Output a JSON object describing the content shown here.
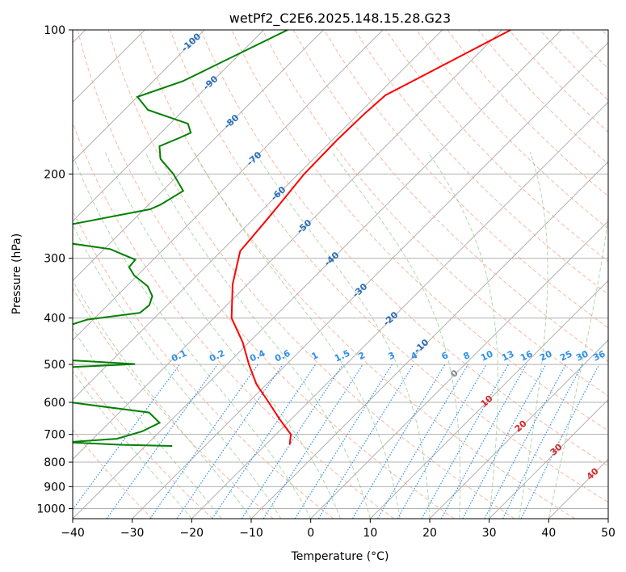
{
  "chart_data": {
    "type": "line",
    "subtype": "skew-t log-p",
    "title": "wetPf2_C2E6.2025.148.15.28.G23",
    "xlabel": "Temperature (°C)",
    "ylabel": "Pressure (hPa)",
    "xlim": [
      -40,
      50
    ],
    "ylim": [
      1050,
      100
    ],
    "yscale": "log",
    "grid": true,
    "x_ticks": [
      "−40",
      "−30",
      "−20",
      "−10",
      "0",
      "10",
      "20",
      "30",
      "40",
      "50"
    ],
    "x_tick_values": [
      -40,
      -30,
      -20,
      -10,
      0,
      10,
      20,
      30,
      40,
      50
    ],
    "y_ticks": [
      "100",
      "200",
      "300",
      "400",
      "500",
      "600",
      "700",
      "800",
      "900",
      "1000"
    ],
    "y_tick_values": [
      100,
      200,
      300,
      400,
      500,
      600,
      700,
      800,
      900,
      1000
    ],
    "series": [
      {
        "role": "temperature",
        "color": "#ff0000",
        "points": [
          [
            -48.5,
            100
          ],
          [
            -58.6,
            137
          ],
          [
            -59.0,
            150
          ],
          [
            -59.2,
            170
          ],
          [
            -59.0,
            200
          ],
          [
            -58.1,
            230
          ],
          [
            -57.6,
            250
          ],
          [
            -56.8,
            290
          ],
          [
            -52.5,
            340
          ],
          [
            -47.0,
            400
          ],
          [
            -41.0,
            450
          ],
          [
            -36.3,
            500
          ],
          [
            -31.7,
            550
          ],
          [
            -26.6,
            600
          ],
          [
            -22.0,
            650
          ],
          [
            -17.5,
            700
          ],
          [
            -16.0,
            735
          ]
        ]
      },
      {
        "role": "dewpoint",
        "color": "#008000",
        "points": [
          [
            -86.0,
            100
          ],
          [
            -95.0,
            128
          ],
          [
            -100.0,
            138
          ],
          [
            -96.0,
            147
          ],
          [
            -87.0,
            157
          ],
          [
            -85.0,
            164
          ],
          [
            -86.0,
            168
          ],
          [
            -88.0,
            175
          ],
          [
            -85.7,
            186
          ],
          [
            -81.0,
            200
          ],
          [
            -76.5,
            217
          ],
          [
            -78.0,
            232
          ],
          [
            -79.0,
            237
          ],
          [
            -91.5,
            258
          ],
          [
            -94.5,
            268
          ],
          [
            -90.0,
            276
          ],
          [
            -79.0,
            287
          ],
          [
            -73.0,
            302
          ],
          [
            -72.8,
            313
          ],
          [
            -70.5,
            326
          ],
          [
            -66.5,
            343
          ],
          [
            -64.0,
            360
          ],
          [
            -63.0,
            376
          ],
          [
            -63.3,
            390
          ],
          [
            -71.0,
            403
          ],
          [
            -74.5,
            422
          ],
          [
            -76.5,
            440
          ],
          [
            -77.2,
            470
          ],
          [
            -69.5,
            488
          ],
          [
            -55.5,
            499
          ],
          [
            -68.0,
            508
          ],
          [
            -82.0,
            518
          ],
          [
            -80.0,
            585
          ],
          [
            -60.0,
            600
          ],
          [
            -45.0,
            630
          ],
          [
            -41.5,
            662
          ],
          [
            -43.0,
            690
          ],
          [
            -46.0,
            715
          ],
          [
            -54.0,
            727
          ],
          [
            -44.0,
            736
          ],
          [
            -35.5,
            740
          ]
        ]
      }
    ],
    "isotherm_labels": [
      "-100",
      "-90",
      "-80",
      "-70",
      "-60",
      "-50",
      "-40",
      "-30",
      "-20",
      "-10",
      "0",
      "10",
      "20",
      "30",
      "40"
    ],
    "mixing_ratio_labels": [
      "0.1",
      "0.2",
      "0.4",
      "0.6",
      "1",
      "1.5",
      "2",
      "3",
      "4",
      "6",
      "8",
      "10",
      "13",
      "16",
      "20",
      "25",
      "30",
      "36"
    ],
    "colors": {
      "temperature": "#ff0000",
      "dewpoint": "#008000",
      "isotherm_label_cold": "#2a6db5",
      "isotherm_label_warm": "#d62728",
      "isotherm_label_zero": "#888888",
      "mixing_ratio": "#2f8fe8",
      "dry_adiabat": "#f2a184",
      "moist_adiabat": "#8cc78c",
      "grid": "#b0b0b0"
    }
  }
}
